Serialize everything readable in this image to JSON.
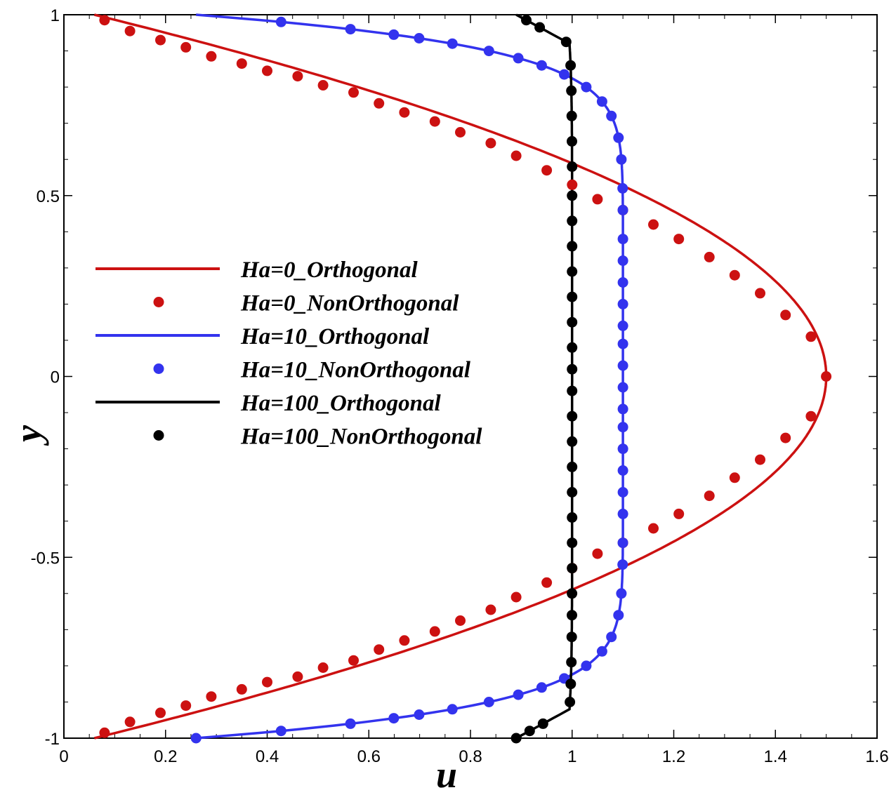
{
  "chart_data": {
    "type": "line",
    "title": "",
    "xlabel": "u",
    "ylabel": "y",
    "xlim": [
      0,
      1.6
    ],
    "ylim": [
      -1,
      1
    ],
    "grid": false,
    "legend_position": "middle-left",
    "x_ticks": [
      {
        "value": 0,
        "label": "0"
      },
      {
        "value": 0.2,
        "label": "0.2"
      },
      {
        "value": 0.4,
        "label": "0.4"
      },
      {
        "value": 0.6,
        "label": "0.6"
      },
      {
        "value": 0.8,
        "label": "0.8"
      },
      {
        "value": 1,
        "label": "1"
      },
      {
        "value": 1.2,
        "label": "1.2"
      },
      {
        "value": 1.4,
        "label": "1.4"
      },
      {
        "value": 1.6,
        "label": "1.6"
      }
    ],
    "y_ticks": [
      {
        "value": -1,
        "label": "-1"
      },
      {
        "value": -0.5,
        "label": "-0.5"
      },
      {
        "value": 0,
        "label": "0"
      },
      {
        "value": 0.5,
        "label": "0.5"
      },
      {
        "value": 1,
        "label": "1"
      }
    ],
    "series": [
      {
        "name": "Ha=0_Orthogonal",
        "kind": "line",
        "color": "#cc1111",
        "ha": 0,
        "u_range": [
          0.06,
          1.5
        ]
      },
      {
        "name": "Ha=0_NonOrthogonal",
        "kind": "markers",
        "color": "#cc1111",
        "ha": 0,
        "x": [
          0.08,
          0.13,
          0.19,
          0.24,
          0.29,
          0.35,
          0.4,
          0.46,
          0.51,
          0.57,
          0.62,
          0.67,
          0.73,
          0.78,
          0.84,
          0.89,
          0.95,
          1.0,
          1.05,
          1.1,
          1.16,
          1.21,
          1.27,
          1.32,
          1.37,
          1.42,
          1.47,
          1.5,
          1.47,
          1.42,
          1.37,
          1.32,
          1.27,
          1.21,
          1.16,
          1.1,
          1.05,
          1.0,
          0.95,
          0.89,
          0.84,
          0.78,
          0.73,
          0.67,
          0.62,
          0.57,
          0.51,
          0.46,
          0.4,
          0.35,
          0.29,
          0.24,
          0.19,
          0.13,
          0.08
        ],
        "y": [
          0.985,
          0.955,
          0.93,
          0.91,
          0.885,
          0.865,
          0.845,
          0.83,
          0.805,
          0.785,
          0.755,
          0.73,
          0.705,
          0.675,
          0.645,
          0.61,
          0.57,
          0.53,
          0.49,
          0.46,
          0.42,
          0.38,
          0.33,
          0.28,
          0.23,
          0.17,
          0.11,
          0.0,
          -0.11,
          -0.17,
          -0.23,
          -0.28,
          -0.33,
          -0.38,
          -0.42,
          -0.46,
          -0.49,
          -0.53,
          -0.57,
          -0.61,
          -0.645,
          -0.675,
          -0.705,
          -0.73,
          -0.755,
          -0.785,
          -0.805,
          -0.83,
          -0.845,
          -0.865,
          -0.885,
          -0.91,
          -0.93,
          -0.955,
          -0.985
        ]
      },
      {
        "name": "Ha=10_Orthogonal",
        "kind": "line",
        "color": "#3333ee",
        "ha": 10,
        "u_range": [
          0.26,
          1.1
        ]
      },
      {
        "name": "Ha=10_NonOrthogonal",
        "kind": "markers",
        "color": "#3333ee",
        "ha": 10,
        "y": [
          0.98,
          0.96,
          0.945,
          0.935,
          0.92,
          0.9,
          0.88,
          0.86,
          0.835,
          0.8,
          0.76,
          0.72,
          0.66,
          0.6,
          0.52,
          0.46,
          0.38,
          0.32,
          0.26,
          0.2,
          0.14,
          0.09,
          0.03,
          -0.03,
          -0.09,
          -0.14,
          -0.2,
          -0.26,
          -0.32,
          -0.38,
          -0.46,
          -0.52,
          -0.6,
          -0.66,
          -0.72,
          -0.76,
          -0.8,
          -0.835,
          -0.86,
          -0.88,
          -0.9,
          -0.92,
          -0.935,
          -0.945,
          -0.96,
          -0.98,
          -1.0
        ]
      },
      {
        "name": "Ha=100_Orthogonal",
        "kind": "line",
        "color": "#000000",
        "ha": 100,
        "u_range": [
          0.89,
          1.0
        ]
      },
      {
        "name": "Ha=100_NonOrthogonal",
        "kind": "markers",
        "color": "#000000",
        "ha": 100,
        "y": [
          0.985,
          0.965,
          0.925,
          0.86,
          0.79,
          0.72,
          0.65,
          0.58,
          0.5,
          0.43,
          0.36,
          0.29,
          0.22,
          0.15,
          0.08,
          0.02,
          -0.04,
          -0.11,
          -0.18,
          -0.25,
          -0.32,
          -0.39,
          -0.46,
          -0.53,
          -0.6,
          -0.66,
          -0.72,
          -0.79,
          -0.85,
          -0.9,
          -0.96,
          -0.98,
          -1.0
        ]
      }
    ]
  }
}
